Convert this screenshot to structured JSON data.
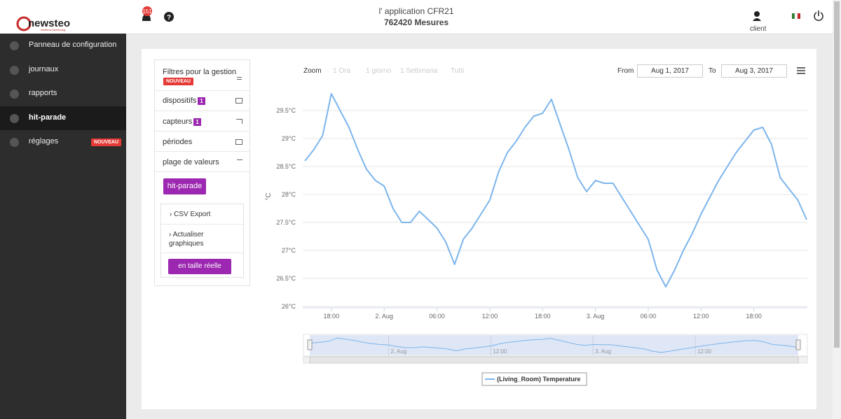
{
  "sidebar": {
    "logo": "newsteo",
    "logo_tagline": "Wireless Monitoring",
    "items": [
      {
        "label": "Panneau de configuration"
      },
      {
        "label": "journaux"
      },
      {
        "label": "rapports"
      },
      {
        "label": "hit-parade"
      },
      {
        "label": "réglages",
        "badge": "NOUVEAU"
      }
    ]
  },
  "header": {
    "notification_count": 151,
    "title": "l' application CFR21",
    "subtitle": "762420 Mesures",
    "user": "client"
  },
  "filters": {
    "title": "Filtres pour la gestion",
    "badge": "NOUVEAU",
    "items": [
      {
        "label": "dispositifs",
        "count": 1
      },
      {
        "label": "capteurs",
        "count": 1
      },
      {
        "label": "périodes"
      },
      {
        "label": "plage de valeurs"
      }
    ],
    "button": "hit-parade",
    "actions": [
      "CSV Export",
      "Actualiser graphiques"
    ],
    "full_size_button": "en taille réelle"
  },
  "chart_controls": {
    "zoom_label": "Zoom",
    "zoom_options": [
      "1 Ora",
      "1 giorno",
      "1 Settimana",
      "Tutti"
    ],
    "from_label": "From",
    "from": "Aug 1, 2017",
    "to_label": "To",
    "to": "Aug 3, 2017"
  },
  "chart_data": {
    "type": "line",
    "y_label": "°C",
    "x": [
      "2017-08-01T15:00",
      "2017-08-01T16:00",
      "2017-08-01T17:00",
      "2017-08-01T18:00",
      "2017-08-01T19:00",
      "2017-08-01T20:00",
      "2017-08-01T21:00",
      "2017-08-01T22:00",
      "2017-08-01T23:00",
      "2017-08-02T00:00",
      "2017-08-02T01:00",
      "2017-08-02T02:00",
      "2017-08-02T03:00",
      "2017-08-02T04:00",
      "2017-08-02T05:00",
      "2017-08-02T06:00",
      "2017-08-02T07:00",
      "2017-08-02T08:00",
      "2017-08-02T09:00",
      "2017-08-02T10:00",
      "2017-08-02T11:00",
      "2017-08-02T12:00",
      "2017-08-02T13:00",
      "2017-08-02T14:00",
      "2017-08-02T15:00",
      "2017-08-02T16:00",
      "2017-08-02T17:00",
      "2017-08-02T18:00",
      "2017-08-02T19:00",
      "2017-08-02T20:00",
      "2017-08-02T21:00",
      "2017-08-02T22:00",
      "2017-08-02T23:00",
      "2017-08-03T00:00",
      "2017-08-03T01:00",
      "2017-08-03T02:00",
      "2017-08-03T03:00",
      "2017-08-03T04:00",
      "2017-08-03T05:00",
      "2017-08-03T06:00",
      "2017-08-03T07:00",
      "2017-08-03T08:00",
      "2017-08-03T09:00",
      "2017-08-03T10:00",
      "2017-08-03T11:00",
      "2017-08-03T12:00",
      "2017-08-03T13:00",
      "2017-08-03T14:00",
      "2017-08-03T15:00",
      "2017-08-03T16:00",
      "2017-08-03T17:00",
      "2017-08-03T18:00",
      "2017-08-03T19:00",
      "2017-08-03T20:00",
      "2017-08-03T21:00",
      "2017-08-03T22:00",
      "2017-08-03T23:00",
      "2017-08-04T00:00"
    ],
    "series": [
      {
        "name": "(Living_Room) Temperature",
        "color": "#7cb5ec",
        "values": [
          28.6,
          28.8,
          29.05,
          29.8,
          29.5,
          29.2,
          28.8,
          28.45,
          28.25,
          28.15,
          27.75,
          27.5,
          27.5,
          27.7,
          27.55,
          27.4,
          27.15,
          26.75,
          27.2,
          27.4,
          27.65,
          27.9,
          28.4,
          28.75,
          28.95,
          29.2,
          29.4,
          29.45,
          29.7,
          29.25,
          28.8,
          28.3,
          28.05,
          28.25,
          28.2,
          28.2,
          27.95,
          27.7,
          27.45,
          27.2,
          26.65,
          26.35,
          26.65,
          27.0,
          27.3,
          27.65,
          27.95,
          28.25,
          28.5,
          28.75,
          28.95,
          29.15,
          29.2,
          28.9,
          28.3,
          28.1,
          27.9,
          27.55
        ]
      }
    ],
    "xlim": [
      "2017-08-01T14:45",
      "2017-08-04T00:05"
    ],
    "xticks": [
      {
        "value": "2017-08-01T18:00",
        "label": "18:00"
      },
      {
        "value": "2017-08-02T00:00",
        "label": "2. Aug"
      },
      {
        "value": "2017-08-02T06:00",
        "label": "06:00"
      },
      {
        "value": "2017-08-02T12:00",
        "label": "12:00"
      },
      {
        "value": "2017-08-02T18:00",
        "label": "18:00"
      },
      {
        "value": "2017-08-03T00:00",
        "label": "3. Aug"
      },
      {
        "value": "2017-08-03T06:00",
        "label": "06:00"
      },
      {
        "value": "2017-08-03T12:00",
        "label": "12:00"
      },
      {
        "value": "2017-08-03T18:00",
        "label": "18:00"
      }
    ],
    "ylim": [
      26,
      30
    ],
    "yticks": [
      {
        "value": 26,
        "label": "26°C"
      },
      {
        "value": 26.5,
        "label": "26.5°C"
      },
      {
        "value": 27,
        "label": "27°C"
      },
      {
        "value": 27.5,
        "label": "27.5°C"
      },
      {
        "value": 28,
        "label": "28°C"
      },
      {
        "value": 28.5,
        "label": "28.5°C"
      },
      {
        "value": 29,
        "label": "29°C"
      },
      {
        "value": 29.5,
        "label": "29.5°C"
      }
    ],
    "grid": true,
    "navigator_xticks": [
      {
        "value": "2017-08-02T00:00",
        "label": "2. Aug"
      },
      {
        "value": "2017-08-02T12:00",
        "label": "12:00"
      },
      {
        "value": "2017-08-03T00:00",
        "label": "3. Aug"
      },
      {
        "value": "2017-08-03T12:00",
        "label": "12:00"
      }
    ]
  }
}
